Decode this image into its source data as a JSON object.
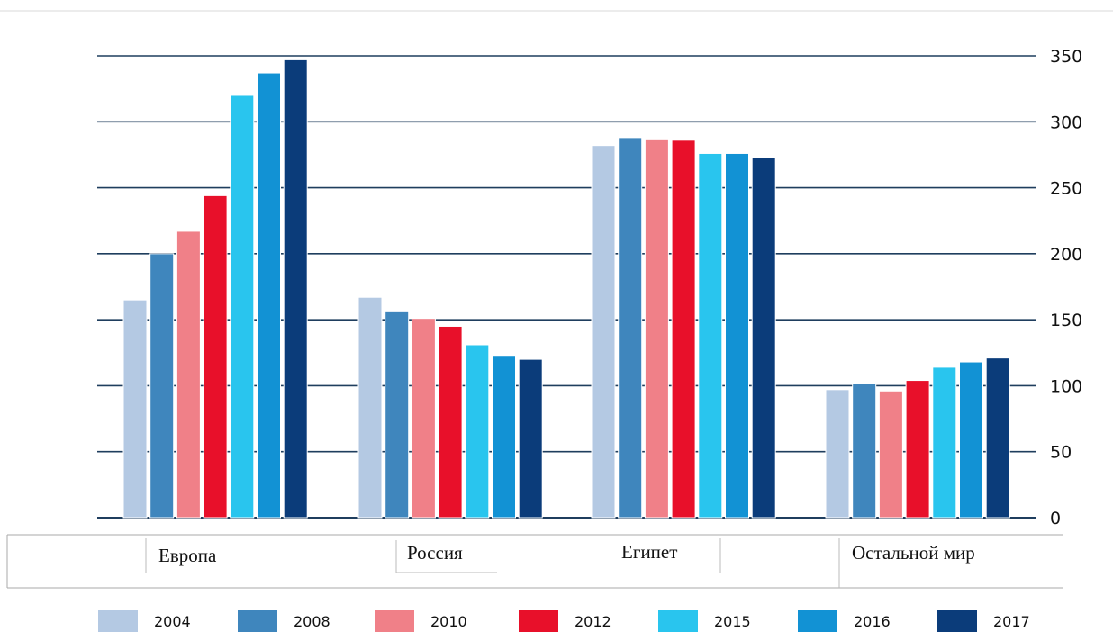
{
  "chart_data": {
    "type": "bar",
    "categories": [
      "Европа",
      "Россия",
      "Египет",
      "Остальной мир"
    ],
    "series": [
      {
        "name": "2004",
        "color": "#b4c9e3",
        "values": [
          165,
          167,
          282,
          97
        ]
      },
      {
        "name": "2008",
        "color": "#3f86bd",
        "values": [
          200,
          156,
          288,
          102
        ]
      },
      {
        "name": "2010",
        "color": "#f08088",
        "values": [
          217,
          151,
          287,
          96
        ]
      },
      {
        "name": "2012",
        "color": "#e8102a",
        "values": [
          244,
          145,
          286,
          104
        ]
      },
      {
        "name": "2015",
        "color": "#29c5ee",
        "values": [
          320,
          131,
          276,
          114
        ]
      },
      {
        "name": "2016",
        "color": "#1292d4",
        "values": [
          337,
          123,
          276,
          118
        ]
      },
      {
        "name": "2017",
        "color": "#0b3c7a",
        "values": [
          347,
          120,
          273,
          121
        ]
      }
    ],
    "y_ticks": [
      "0",
      "50",
      "100",
      "150",
      "200",
      "250",
      "300",
      "350"
    ],
    "ylim": [
      0,
      350
    ],
    "y_axis_side": "right",
    "grid": true,
    "legend_position": "bottom"
  }
}
